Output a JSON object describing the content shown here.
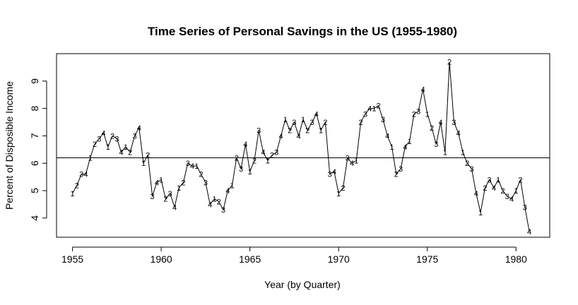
{
  "chart_data": {
    "type": "line",
    "title": "Time Series of Personal Savings in the US (1955-1980)",
    "xlabel": "Year (by Quarter)",
    "ylabel": "Percent of Disposible Income",
    "xlim": [
      1954.1,
      1981.9
    ],
    "ylim": [
      3.3,
      10.0
    ],
    "xticks": [
      1955,
      1960,
      1965,
      1970,
      1975,
      1980
    ],
    "yticks": [
      4,
      5,
      6,
      7,
      8,
      9
    ],
    "hline": 6.2,
    "series": [
      {
        "x": [
          1955.0,
          1955.25,
          1955.5,
          1955.75,
          1956.0,
          1956.25,
          1956.5,
          1956.75,
          1957.0,
          1957.25,
          1957.5,
          1957.75,
          1958.0,
          1958.25,
          1958.5,
          1958.75,
          1959.0,
          1959.25,
          1959.5,
          1959.75,
          1960.0,
          1960.25,
          1960.5,
          1960.75,
          1961.0,
          1961.25,
          1961.5,
          1961.75,
          1962.0,
          1962.25,
          1962.5,
          1962.75,
          1963.0,
          1963.25,
          1963.5,
          1963.75,
          1964.0,
          1964.25,
          1964.5,
          1964.75,
          1965.0,
          1965.25,
          1965.5,
          1965.75,
          1966.0,
          1966.25,
          1966.5,
          1966.75,
          1967.0,
          1967.25,
          1967.5,
          1967.75,
          1968.0,
          1968.25,
          1968.5,
          1968.75,
          1969.0,
          1969.25,
          1969.5,
          1969.75,
          1970.0,
          1970.25,
          1970.5,
          1970.75,
          1971.0,
          1971.25,
          1971.5,
          1971.75,
          1972.0,
          1972.25,
          1972.5,
          1972.75,
          1973.0,
          1973.25,
          1973.5,
          1973.75,
          1974.0,
          1974.25,
          1974.5,
          1974.75,
          1975.0,
          1975.25,
          1975.5,
          1975.75,
          1976.0,
          1976.25,
          1976.5,
          1976.75,
          1977.0,
          1977.25,
          1977.5,
          1977.75,
          1978.0,
          1978.25,
          1978.5,
          1978.75,
          1979.0,
          1979.25,
          1979.5,
          1979.75,
          1980.0,
          1980.25,
          1980.5,
          1980.75
        ],
        "values": [
          4.9,
          5.2,
          5.6,
          5.6,
          6.2,
          6.7,
          6.9,
          7.1,
          6.6,
          7.0,
          6.9,
          6.4,
          6.6,
          6.4,
          7.0,
          7.3,
          6.0,
          6.3,
          4.8,
          5.3,
          5.4,
          4.7,
          4.9,
          4.4,
          5.1,
          5.3,
          6.0,
          5.9,
          5.9,
          5.6,
          5.3,
          4.5,
          4.7,
          4.6,
          4.3,
          5.0,
          5.2,
          6.2,
          5.8,
          6.7,
          5.7,
          6.1,
          7.2,
          6.4,
          6.1,
          6.3,
          6.4,
          7.0,
          7.6,
          7.2,
          7.5,
          7.0,
          7.6,
          7.2,
          7.5,
          7.8,
          7.2,
          7.5,
          5.6,
          5.7,
          4.9,
          5.1,
          6.2,
          6.0,
          6.1,
          7.5,
          7.8,
          8.0,
          8.0,
          8.1,
          7.6,
          7.0,
          6.6,
          5.6,
          5.8,
          6.6,
          6.8,
          7.8,
          7.9,
          8.7,
          7.8,
          7.3,
          6.7,
          7.5,
          6.4,
          9.7,
          7.5,
          7.1,
          6.4,
          6.0,
          5.8,
          4.9,
          4.2,
          5.1,
          5.4,
          5.1,
          5.4,
          5.0,
          4.8,
          4.7,
          5.0,
          5.4,
          4.4,
          3.5
        ]
      }
    ]
  }
}
